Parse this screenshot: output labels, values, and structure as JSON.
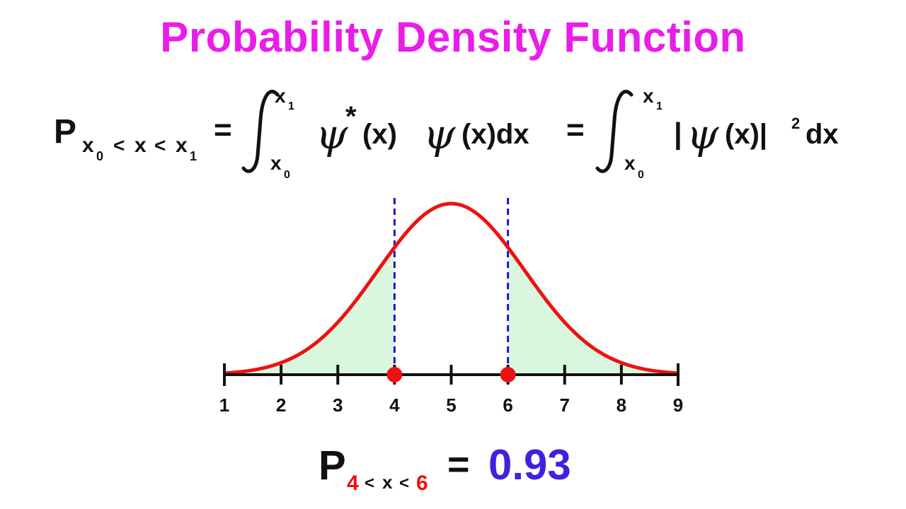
{
  "title": "Probability Density Function",
  "formula": {
    "p": "P",
    "sub_x0": "x",
    "sub_0": "0",
    "sub_lt1": "<",
    "sub_x": "x",
    "sub_lt2": "<",
    "sub_x1": "x",
    "sub_1": "1",
    "eq1": "=",
    "int_upper": "x",
    "int_upper_sub": "1",
    "int_lower": "x",
    "int_lower_sub": "0",
    "psi": "ψ",
    "star": "*",
    "paren_x1": "(x)",
    "paren_x_dx": "(x)dx",
    "eq2": "=",
    "abs_open": "|",
    "paren_x2": "(x)|",
    "sq": "2",
    "dx": "dx"
  },
  "chart_data": {
    "type": "area",
    "x_ticks": [
      "1",
      "2",
      "3",
      "4",
      "5",
      "6",
      "7",
      "8",
      "9"
    ],
    "xlim": [
      1,
      9
    ],
    "curve": {
      "shape": "bell",
      "mean": 5,
      "color": "#ee1111"
    },
    "shaded_regions": [
      [
        1,
        4
      ],
      [
        6,
        9
      ]
    ],
    "shade_color": "#d9f7de",
    "markers": [
      4,
      6
    ],
    "marker_color": "#ee1111",
    "dashed_lines": [
      4,
      6
    ],
    "dashed_color": "#2211cc"
  },
  "result": {
    "p": "P",
    "sub_a": "4",
    "sub_lt1": "<",
    "sub_x": "x",
    "sub_lt2": "<",
    "sub_b": "6",
    "eq": "=",
    "value": "0.93",
    "value_color": "#3d22e0",
    "sub_color": "#ee1111"
  }
}
